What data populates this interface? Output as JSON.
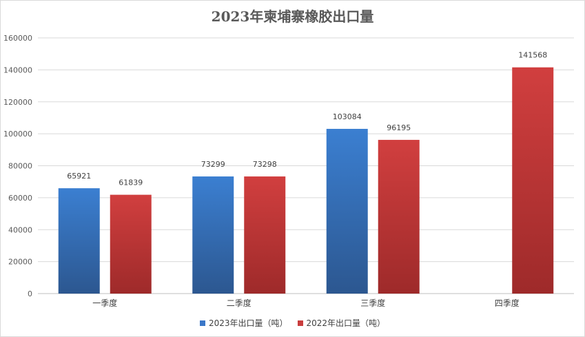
{
  "chart_data": {
    "type": "bar",
    "title": "2023年柬埔寨橡胶出口量",
    "xlabel": "",
    "ylabel": "",
    "categories": [
      "一季度",
      "二季度",
      "三季度",
      "四季度"
    ],
    "series": [
      {
        "name": "2023年出口量（吨）",
        "values": [
          65921,
          73299,
          103084,
          null
        ],
        "color": "#3a77c8"
      },
      {
        "name": "2022年出口量（吨）",
        "values": [
          61839,
          73298,
          96195,
          141568
        ],
        "color": "#c93d3d"
      }
    ],
    "ylim": [
      0,
      160000
    ],
    "yticks": [
      0,
      20000,
      40000,
      60000,
      80000,
      100000,
      120000,
      140000,
      160000
    ],
    "grid": true,
    "legend": "bottom"
  }
}
